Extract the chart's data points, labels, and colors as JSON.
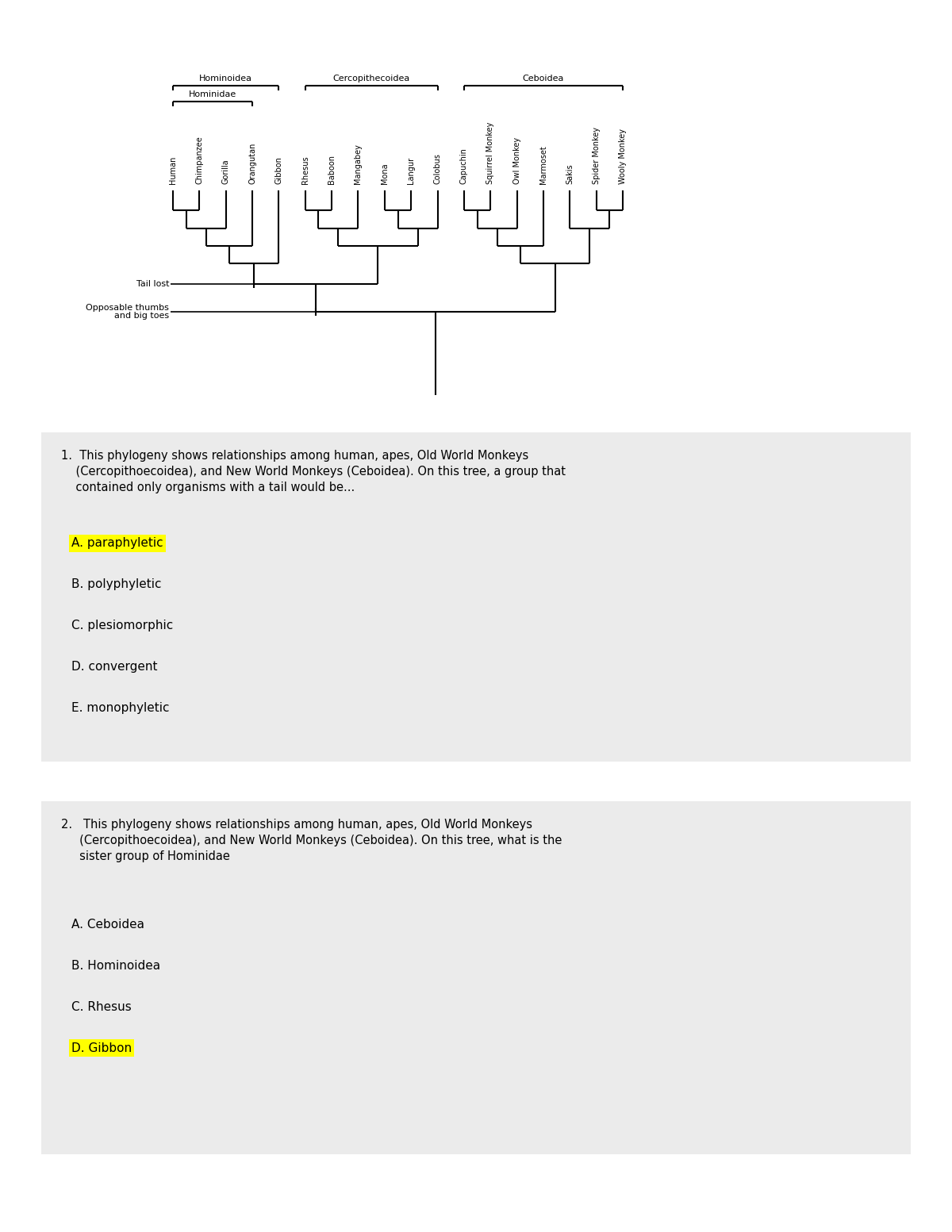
{
  "bg_color": "#ffffff",
  "question_bg": "#ebebeb",
  "highlight_color": "#ffff00",
  "taxa": [
    "Human",
    "Chimpanzee",
    "Gorilla",
    "Orangutan",
    "Gibbon",
    "Rhesus",
    "Baboon",
    "Mangabey",
    "Mona",
    "Langur",
    "Colobus",
    "Capuchin",
    "Squirrel Monkey",
    "Owl Monkey",
    "Marmoset",
    "Sakis",
    "Spider Monkey",
    "Wooly Monkey"
  ],
  "q1_text_line1": "1.  This phylogeny shows relationships among human, apes, Old World Monkeys",
  "q1_text_line2": "    (Cercopithoecoidea), and New World Monkeys (Ceboidea). On this tree, a group that",
  "q1_text_line3": "    contained only organisms with a tail would be...",
  "q1_choices": [
    "A. paraphyletic",
    "B. polyphyletic",
    "C. plesiomorphic",
    "D. convergent",
    "E. monophyletic"
  ],
  "q1_highlighted": 0,
  "q2_text_line1": "2.   This phylogeny shows relationships among human, apes, Old World Monkeys",
  "q2_text_line2": "     (Cercopithoecoidea), and New World Monkeys (Ceboidea). On this tree, what is the",
  "q2_text_line3": "     sister group of Hominidae",
  "q2_choices": [
    "A. Ceboidea",
    "B. Hominoidea",
    "C. Rhesus",
    "D. Gibbon"
  ],
  "q2_highlighted": 3,
  "annotation1": "Tail lost",
  "annotation2_line1": "Opposable thumbs",
  "annotation2_line2": "and big toes"
}
